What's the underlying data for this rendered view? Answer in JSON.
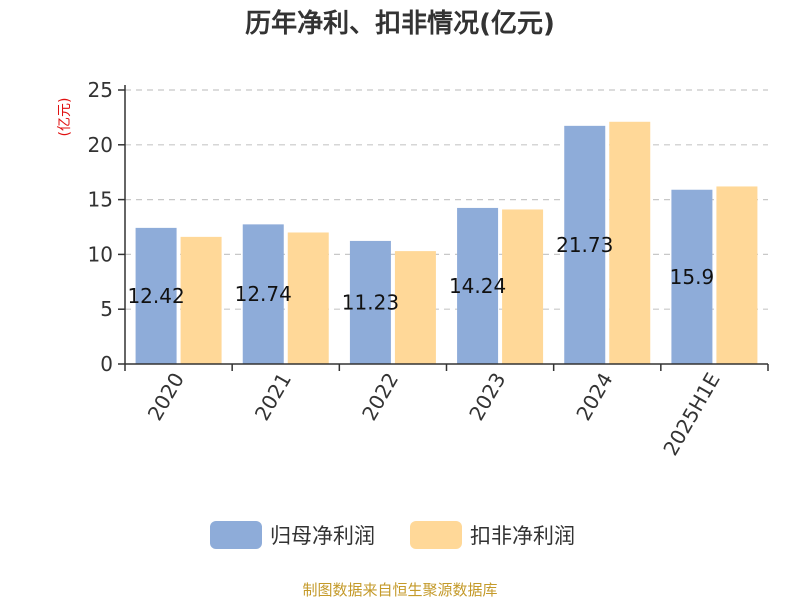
{
  "chart_data": {
    "type": "bar",
    "title": "历年净利、扣非情况(亿元)",
    "ylabel": "(亿元)",
    "xlabel": "",
    "categories": [
      "2020",
      "2021",
      "2022",
      "2023",
      "2024",
      "2025H1E"
    ],
    "series": [
      {
        "name": "归母净利润",
        "values": [
          12.42,
          12.74,
          11.23,
          14.24,
          21.73,
          15.9
        ],
        "color": "#8eacd9",
        "show_labels": true
      },
      {
        "name": "扣非净利润",
        "values": [
          11.6,
          12.0,
          10.3,
          14.1,
          22.1,
          16.2
        ],
        "color": "#ffd898",
        "show_labels": false
      }
    ],
    "ylim": [
      0,
      25
    ],
    "yticks": [
      0,
      5,
      10,
      15,
      20,
      25
    ],
    "grid": true,
    "legend": "bottom",
    "source": "制图数据来自恒生聚源数据库"
  }
}
